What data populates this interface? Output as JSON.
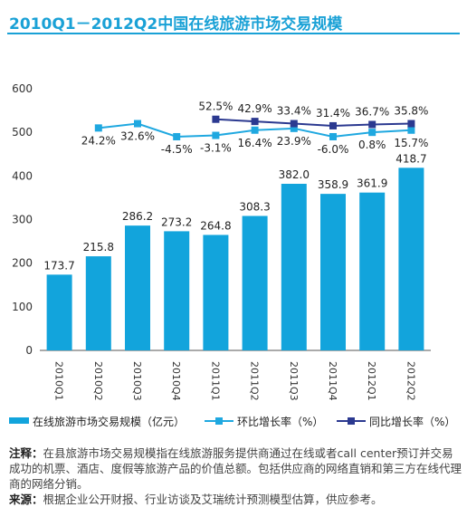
{
  "title": "2010Q1－2012Q2中国在线旅游市场交易规模",
  "notes": {
    "note_label": "注释：",
    "note_text": "在县旅游市场交易规模指在线旅游服务提供商通过在线或者call center预订并交易成功的机票、酒店、度假等旅游产品的价值总额。包括供应商的网络直销和第三方在线代理商的网络分销。",
    "source_label": "来源：",
    "source_text": "根据企业公开财报、行业访谈及艾瑞统计预测模型估算，供应参考。"
  },
  "colors": {
    "title": "#1aa1d6",
    "bar": "#12a4dc",
    "qoq": "#1fa8e0",
    "yoy": "#2b3990"
  },
  "chart_data": {
    "type": "bar",
    "categories": [
      "2010Q1",
      "2010Q2",
      "2010Q3",
      "2010Q4",
      "2011Q1",
      "2011Q2",
      "2011Q3",
      "2011Q4",
      "2012Q1",
      "2012Q2"
    ],
    "ylim": [
      0,
      600
    ],
    "yticks": [
      0,
      100,
      200,
      300,
      400,
      500,
      600
    ],
    "grid": false,
    "legend_position": "bottom",
    "series": [
      {
        "name": "在线旅游市场交易规模（亿元）",
        "kind": "bar",
        "values": [
          173.7,
          215.8,
          286.2,
          273.2,
          264.8,
          308.3,
          382.0,
          358.9,
          361.9,
          418.7
        ],
        "labels": [
          "173.7",
          "215.8",
          "286.2",
          "273.2",
          "264.8",
          "308.3",
          "382.0",
          "358.9",
          "361.9",
          "418.7"
        ]
      },
      {
        "name": "环比增长率（%）",
        "kind": "line",
        "marker": "square",
        "values": [
          null,
          24.2,
          32.6,
          -4.5,
          -3.1,
          16.4,
          23.9,
          -6.0,
          0.8,
          15.7
        ],
        "labels": [
          "",
          "24.2%",
          "32.6%",
          "-4.5%",
          "-3.1%",
          "16.4%",
          "23.9%",
          "-6.0%",
          "0.8%",
          "15.7%"
        ],
        "display_y": [
          null,
          510,
          520,
          490,
          493,
          505,
          509,
          490,
          500,
          505
        ]
      },
      {
        "name": "同比增长率（%）",
        "kind": "line",
        "marker": "square",
        "values": [
          null,
          null,
          null,
          null,
          52.5,
          42.9,
          33.4,
          31.4,
          36.7,
          35.8
        ],
        "labels": [
          "",
          "",
          "",
          "",
          "52.5%",
          "42.9%",
          "33.4%",
          "31.4%",
          "36.7%",
          "35.8%"
        ],
        "display_y": [
          null,
          null,
          null,
          null,
          530,
          525,
          520,
          515,
          518,
          520
        ]
      }
    ]
  }
}
